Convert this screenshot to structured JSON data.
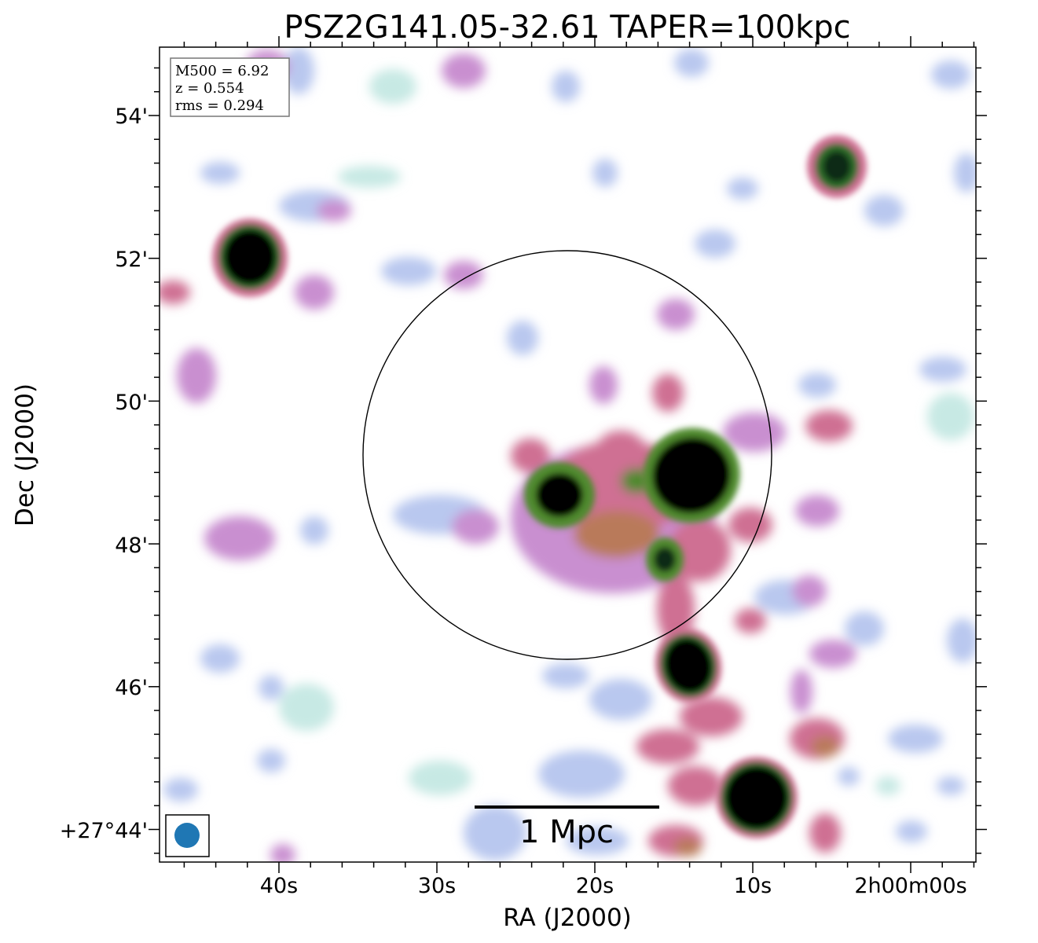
{
  "chart_data": {
    "type": "heatmap",
    "title": "PSZ2G141.05-32.61 TAPER=100kpc",
    "xlabel": "RA (J2000)",
    "ylabel": "Dec (J2000)",
    "x_ticks": [
      "40s",
      "30s",
      "20s",
      "10s",
      "2h00m00s"
    ],
    "y_ticks": [
      "54'",
      "52'",
      "50'",
      "48'",
      "46'",
      "+27°44'"
    ],
    "info_box": [
      "M500 = 6.92",
      "z = 0.554",
      "rms = 0.294"
    ],
    "scale_bar_label": "1 Mpc",
    "colormap": [
      "#ffffff",
      "#c7e9e4",
      "#b9c8ef",
      "#c98fd0",
      "#cf6f93",
      "#b97a5a",
      "#4f8a2e",
      "#0b2a12",
      "#000000"
    ],
    "beam_color": "#1f77b4",
    "circle_color": "#000000",
    "ra_range_seconds": [
      48,
      -2
    ],
    "dec_range_arcmin": [
      43.6,
      55.0
    ],
    "sources": [
      {
        "ra_s": 42.0,
        "dec_arcmin": 52.02,
        "peak": "saturated"
      },
      {
        "ra_s": 5.0,
        "dec_arcmin": 53.25,
        "peak": "saturated"
      },
      {
        "ra_s": 22.3,
        "dec_arcmin": 48.7,
        "peak": "saturated"
      },
      {
        "ra_s": 14.0,
        "dec_arcmin": 49.1,
        "peak": "saturated"
      },
      {
        "ra_s": 15.2,
        "dec_arcmin": 47.8,
        "peak": "bright"
      },
      {
        "ra_s": 14.2,
        "dec_arcmin": 46.2,
        "peak": "saturated"
      },
      {
        "ra_s": 9.8,
        "dec_arcmin": 44.4,
        "peak": "saturated"
      }
    ],
    "diffuse_emission_center": {
      "ra_s": 18.5,
      "dec_arcmin": 48.4
    },
    "circle": {
      "ra_s": 21.9,
      "dec_arcmin": 49.25,
      "radius_arcmin": 2.85
    },
    "scale_bar": {
      "ra_start_s": 27.5,
      "ra_end_s": 16.0,
      "dec_arcmin": 44.3
    }
  }
}
